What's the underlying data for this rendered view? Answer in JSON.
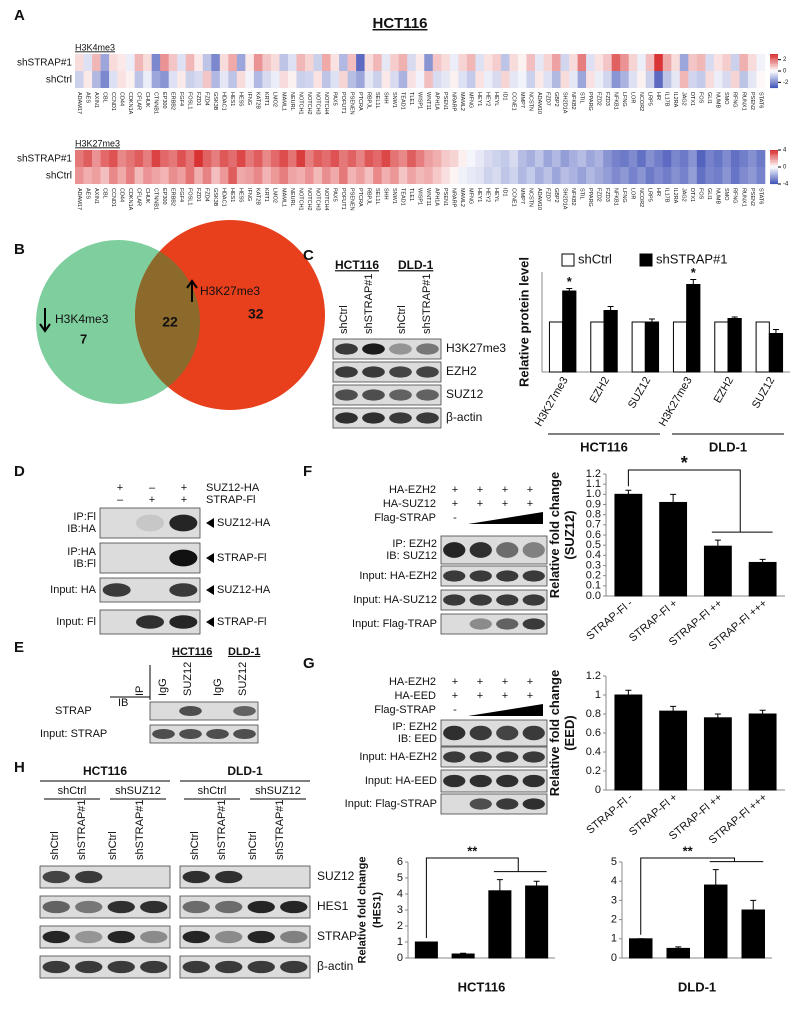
{
  "panels": {
    "panel_a": {
      "label": "A",
      "title": "HCT116",
      "genes": [
        "ADAM17",
        "AES",
        "AXIN1",
        "CBL",
        "CCND1",
        "CD44",
        "CDKN1A",
        "CFLAR",
        "CHUK",
        "CTNNB1",
        "EP300",
        "ERBB2",
        "FGF4",
        "FOSL1",
        "FZD1",
        "FZD4",
        "GSK3B",
        "HDAC1",
        "HES1",
        "HES5",
        "IFNG",
        "KAT2B",
        "KRT1",
        "LMO2",
        "MAML1",
        "NEURL",
        "NOTCH1",
        "NOTCH2",
        "NOTCH3",
        "NOTCH4",
        "PAX5",
        "POFUT1",
        "PSENEN",
        "PTCRA",
        "RBPJL",
        "SEL1L",
        "SHH",
        "SNW1",
        "TEAD1",
        "TLE1",
        "WISP1",
        "WNT11",
        "APH1A",
        "PSEN1",
        "NRARP",
        "MAML2",
        "MFNG",
        "HEY1",
        "HEY2",
        "HEYL",
        "ID1",
        "CCNE1",
        "MMP7",
        "NCSTN",
        "ADAM10",
        "FZD7",
        "GBP2",
        "SH2D1A",
        "NFKB2",
        "STIL",
        "PPARG",
        "FZD2",
        "FZD3",
        "NFKB1",
        "LFNG",
        "LOR",
        "NCOR2",
        "LRP5",
        "HR",
        "IL17B",
        "IL2RA",
        "JAG2",
        "DTX1",
        "FOS",
        "GLI1",
        "NUMB",
        "SMO",
        "RFNG",
        "RUNX1",
        "PSEN2",
        "STAT6"
      ],
      "colors": [
        "#3b4db5",
        "#ffffff",
        "#d62728"
      ],
      "heatmaps": [
        {
          "mark": "H3K4me3",
          "rows": [
            "shSTRAP#1",
            "shCtrl"
          ],
          "clim": [
            -3,
            3
          ],
          "colorbar_ticks": [
            -2,
            0,
            2
          ],
          "values": [
            [
              0.5,
              -0.5,
              1,
              -1.5,
              0.5,
              0.3,
              -0.3,
              1,
              0.5,
              -2,
              1.5,
              0.8,
              -0.5,
              1,
              0.3,
              -1,
              -2,
              0.5,
              1.2,
              -1.5,
              0.3,
              1.5,
              0.8,
              0.5,
              -1,
              -0.5,
              1,
              0.6,
              -0.8,
              1.2,
              0.4,
              -1.2,
              0.9,
              -2.5,
              0.5,
              1,
              -0.4,
              0.7,
              1.1,
              -0.6,
              0.3,
              -1.8,
              0.8,
              0.5,
              -0.3,
              0.6,
              1,
              -0.5,
              0.4,
              0.7,
              -1,
              0.5,
              0.2,
              0.9,
              -0.4,
              0.6,
              1.3,
              -0.7,
              0.5,
              1.8,
              -0.5,
              0.4,
              0.8,
              2.2,
              1.5,
              0.6,
              -0.3,
              0.9,
              2.8,
              1.2,
              0.5,
              -1.5,
              0.8,
              1,
              -0.6,
              0.4,
              0.7,
              -0.8,
              1.1,
              0.5,
              -0.2
            ],
            [
              -0.8,
              0.3,
              -1.2,
              -2,
              -0.5,
              0.4,
              0.2,
              -1,
              -0.3,
              -1.5,
              -1.8,
              -0.5,
              0.3,
              -0.8,
              -0.6,
              0.8,
              -1.2,
              -0.4,
              -1,
              0.5,
              -0.2,
              -1.2,
              -0.6,
              -0.3,
              0.5,
              0.2,
              -0.8,
              -0.7,
              0.4,
              -1,
              -0.5,
              0.6,
              -1.1,
              -1.5,
              -0.4,
              -0.8,
              0.3,
              -0.6,
              -1.3,
              0.4,
              -0.2,
              0.9,
              -0.6,
              -0.4,
              0.2,
              -0.5,
              -0.9,
              0.4,
              -0.3,
              -0.6,
              0.6,
              -0.4,
              -0.2,
              -0.8,
              0.3,
              -0.5,
              -1.2,
              0.5,
              -0.4,
              -1.5,
              0.4,
              -0.3,
              -0.7,
              -1.8,
              -1.3,
              -0.5,
              0.2,
              -0.8,
              -2.5,
              -1,
              -0.4,
              1,
              -0.7,
              -0.9,
              0.5,
              -0.3,
              -0.6,
              0.6,
              -1,
              -0.4,
              0.1
            ]
          ]
        },
        {
          "mark": "H3K27me3",
          "rows": [
            "shSTRAP#1",
            "shCtrl"
          ],
          "clim": [
            -4,
            4
          ],
          "colorbar_ticks": [
            -4,
            0,
            4
          ],
          "values": [
            [
              2.5,
              3,
              2,
              2.8,
              3.2,
              2.2,
              2.6,
              3,
              2.4,
              3.5,
              2.8,
              2.5,
              3.2,
              2.6,
              3.8,
              2.9,
              2.4,
              3.1,
              2.7,
              3.4,
              2.5,
              3,
              2.2,
              2.8,
              3.3,
              2.6,
              3.6,
              2.4,
              3,
              2.7,
              3.2,
              2.5,
              2.9,
              2.3,
              3.1,
              2.8,
              3.4,
              2.6,
              2.2,
              3,
              2.4,
              1.8,
              1.5,
              1,
              0.8,
              0.3,
              -0.2,
              -0.5,
              -0.8,
              -1,
              -1.2,
              -0.8,
              -1.5,
              -1.8,
              -1.3,
              -2,
              -1.6,
              -2.2,
              -1.8,
              -1.5,
              -2,
              -1.7,
              -2.4,
              -2.8,
              -3,
              -2.6,
              -3.2,
              -2.5,
              -2.9,
              -3.3,
              -2.7,
              -3,
              -2.4,
              -3.5,
              -2.8,
              -3.1,
              -2.6,
              -3.2,
              -2.9,
              -2.5,
              -3
            ],
            [
              2,
              1.5,
              1.8,
              1.2,
              2.2,
              1.6,
              2.4,
              1.3,
              2,
              1.7,
              1.4,
              2.1,
              1.8,
              2.6,
              1.5,
              2.3,
              1.2,
              1.9,
              3,
              1.6,
              1.8,
              2.2,
              1.4,
              1.9,
              2.4,
              1.7,
              1.5,
              2,
              1.3,
              2.1,
              1.6,
              2.5,
              1.4,
              1.8,
              1.2,
              2.2,
              1.5,
              1.9,
              1.1,
              1.7,
              1.3,
              1.5,
              1,
              0.6,
              0.2,
              -0.3,
              -0.5,
              -0.6,
              -1,
              -0.8,
              -1.3,
              -1,
              -1.6,
              -1.2,
              -1.8,
              -1.4,
              -2,
              -1.5,
              -1.7,
              -2.1,
              -1.6,
              -1.9,
              -2.2,
              -2.6,
              -2.3,
              -2.8,
              -2.4,
              -3,
              -2.6,
              -2.9,
              -2.5,
              -2.8,
              -2.2,
              -3.2,
              -2.7,
              -2.9,
              -2.4,
              -3.1,
              -2.6,
              -2.3,
              -2.8
            ]
          ]
        }
      ]
    },
    "panel_b": {
      "label": "B",
      "left_name": "H3K4me3",
      "left_only": 7,
      "overlap": 22,
      "right_name": "H3K27me3",
      "right_only": 32
    },
    "panel_c": {
      "label": "C",
      "cell_lines": [
        "HCT116",
        "DLD-1"
      ],
      "lanes": [
        "shCtrl",
        "shSTRAP#1",
        "shCtrl",
        "shSTRAP#1"
      ],
      "proteins": [
        "H3K27me3",
        "EZH2",
        "SUZ12",
        "β-actin"
      ]
    },
    "panel_d": {
      "label": "D",
      "conditions": [
        {
          "name": "SUZ12-HA",
          "signs": [
            "+",
            "–",
            "+"
          ]
        },
        {
          "name": "STRAP-Fl",
          "signs": [
            "–",
            "+",
            "+"
          ]
        }
      ],
      "rows": [
        {
          "left": [
            "IP:Fl",
            "IB:HA"
          ],
          "right": "SUZ12-HA"
        },
        {
          "left": [
            "IP:HA",
            "IB:Fl"
          ],
          "right": "STRAP-Fl"
        },
        {
          "left": [
            "Input: HA"
          ],
          "right": "SUZ12-HA"
        },
        {
          "left": [
            "Input: Fl"
          ],
          "right": "STRAP-Fl"
        }
      ]
    },
    "panel_e": {
      "label": "E",
      "cell_lines": [
        "HCT116",
        "DLD-1"
      ],
      "ip": "IP",
      "ib": "IB",
      "lanes": [
        "IgG",
        "SUZ12",
        "IgG",
        "SUZ12"
      ],
      "rows": [
        "STRAP",
        "Input: STRAP"
      ]
    },
    "panel_f": {
      "label": "F",
      "conditions": [
        {
          "name": "HA-EZH2",
          "signs": [
            "+",
            "+",
            "+",
            "+"
          ]
        },
        {
          "name": "HA-SUZ12",
          "signs": [
            "+",
            "+",
            "+",
            "+"
          ]
        },
        {
          "name": "Flag-STRAP",
          "signs": [
            "-"
          ]
        }
      ],
      "rows": [
        [
          "IP: EZH2",
          "IB: SUZ12"
        ],
        [
          "Input: HA-EZH2"
        ],
        [
          "Input: HA-SUZ12"
        ],
        [
          "Input: Flag-TRAP"
        ]
      ]
    },
    "panel_g": {
      "label": "G",
      "conditions": [
        {
          "name": "HA-EZH2",
          "signs": [
            "+",
            "+",
            "+",
            "+"
          ]
        },
        {
          "name": "HA-EED",
          "signs": [
            "+",
            "+",
            "+",
            "+"
          ]
        },
        {
          "name": "Flag-STRAP",
          "signs": [
            "-"
          ]
        }
      ],
      "rows": [
        [
          "IP: EZH2",
          "IB: EED"
        ],
        [
          "Input: HA-EZH2"
        ],
        [
          "Input: HA-EED"
        ],
        [
          "Input: Flag-STRAP"
        ]
      ]
    },
    "panel_h": {
      "label": "H",
      "cell_lines": [
        "HCT116",
        "DLD-1"
      ],
      "groups": [
        "shCtrl",
        "shSUZ12",
        "shCtrl",
        "shSUZ12"
      ],
      "lanes": [
        "shCtrl",
        "shSTRAP#1",
        "shCtrl",
        "shSTRAP#1",
        "shCtrl",
        "shSTRAP#1",
        "shCtrl",
        "shSTRAP#1"
      ],
      "proteins": [
        "SUZ12",
        "HES1",
        "STRAP",
        "β-actin"
      ]
    }
  },
  "chart_data": [
    {
      "type": "bar",
      "ylabel": [
        "Relative protein level"
      ],
      "categories": [
        "H3K27me3",
        "EZH2",
        "SUZ12",
        "H3K27me3",
        "EZH2",
        "SUZ12"
      ],
      "groups": [
        "HCT116",
        "DLD-1"
      ],
      "series": [
        {
          "name": "shCtrl",
          "color": "#ffffff",
          "values": [
            1,
            1,
            1,
            1,
            1,
            1
          ]
        },
        {
          "name": "shSTRAP#1",
          "color": "#000000",
          "values": [
            1.62,
            1.23,
            1.0,
            1.75,
            1.07,
            0.77
          ],
          "errors": [
            0.05,
            0.08,
            0.06,
            0.1,
            0.03,
            0.08
          ]
        }
      ],
      "significance": [
        "*",
        null,
        null,
        "*",
        null,
        null
      ],
      "ylim": [
        0,
        2
      ],
      "legend": "top"
    },
    {
      "type": "bar",
      "ylabel": [
        "Relative fold change",
        "(SUZ12)"
      ],
      "categories": [
        "STRAP-Fl -",
        "STRAP-Fl +",
        "STRAP-Fl ++",
        "STRAP-Fl +++"
      ],
      "values": [
        1.0,
        0.92,
        0.49,
        0.33
      ],
      "errors": [
        0.04,
        0.08,
        0.06,
        0.03
      ],
      "color": "#000000",
      "ylim": [
        0,
        1.2
      ],
      "yticks": [
        {
          "value": 0,
          "label": "0.0"
        },
        0.1,
        0.2,
        0.3,
        0.4,
        0.5,
        0.6,
        0.7,
        0.8,
        0.9,
        {
          "value": 1,
          "label": "1.0"
        },
        1.1,
        1.2
      ],
      "significance": "*"
    },
    {
      "type": "bar",
      "ylabel": [
        "Relative fold change",
        "(EED)"
      ],
      "categories": [
        "STRAP-Fl -",
        "STRAP-Fl +",
        "STRAP-Fl ++",
        "STRAP-Fl +++"
      ],
      "values": [
        1.0,
        0.83,
        0.76,
        0.8
      ],
      "errors": [
        0.05,
        0.05,
        0.04,
        0.04
      ],
      "color": "#000000",
      "ylim": [
        0,
        1.2
      ],
      "yticks": [
        0,
        0.2,
        0.4,
        0.6,
        0.8,
        1,
        1.2
      ]
    },
    {
      "type": "bar",
      "ylabel": [
        "Relative fold change",
        "(HES1)"
      ],
      "xlabel": "HCT116",
      "categories": [
        null,
        null,
        null,
        null
      ],
      "values": [
        1,
        0.25,
        4.2,
        4.5
      ],
      "errors": [
        0,
        0.05,
        0.7,
        0.3
      ],
      "color": "#000000",
      "ylim": [
        0,
        6
      ],
      "yticks": [
        0,
        1,
        2,
        3,
        4,
        5,
        6
      ],
      "significance": "**"
    },
    {
      "type": "bar",
      "xlabel": "DLD-1",
      "categories": [
        null,
        null,
        null,
        null
      ],
      "values": [
        1,
        0.5,
        3.8,
        2.5
      ],
      "errors": [
        0,
        0.08,
        0.8,
        0.5
      ],
      "color": "#000000",
      "ylim": [
        0,
        5
      ],
      "yticks": [
        0,
        1,
        2,
        3,
        4,
        5
      ],
      "significance": "**"
    }
  ]
}
